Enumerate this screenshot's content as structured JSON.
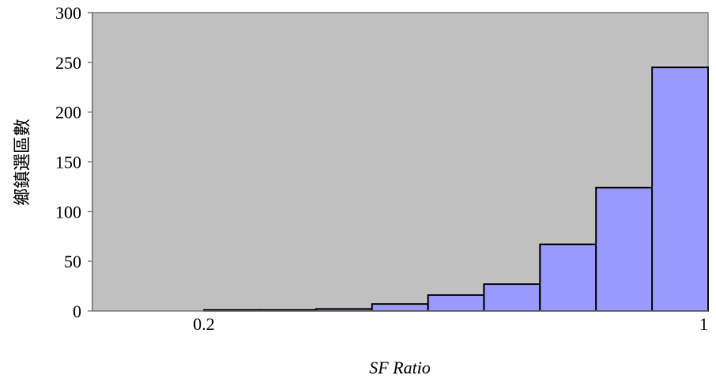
{
  "chart_data": {
    "type": "bar",
    "title": "",
    "xlabel": "SF Ratio",
    "ylabel": "鄉鎮選區數",
    "ylim": [
      0,
      300
    ],
    "yticks": [
      "0",
      "50",
      "100",
      "150",
      "200",
      "250",
      "300"
    ],
    "xlim": [
      0,
      1
    ],
    "xticks": [
      {
        "value": 0.2,
        "label": "0.2"
      },
      {
        "value": 1,
        "label": "1"
      }
    ],
    "bins": [
      {
        "x0": 0.2,
        "x1": 0.3,
        "value": 1
      },
      {
        "x0": 0.3,
        "x1": 0.4,
        "value": 1
      },
      {
        "x0": 0.4,
        "x1": 0.5,
        "value": 2
      },
      {
        "x0": 0.5,
        "x1": 0.6,
        "value": 7
      },
      {
        "x0": 0.6,
        "x1": 0.7,
        "value": 16
      },
      {
        "x0": 0.7,
        "x1": 0.8,
        "value": 27
      },
      {
        "x0": 0.8,
        "x1": 0.9,
        "value": 67
      },
      {
        "x0": 0.9,
        "x1": 1.0,
        "value": 124
      },
      {
        "x0": 1.0,
        "x1": 1.1,
        "value": 245
      }
    ],
    "colors": {
      "plot_background": "#c0c0c0",
      "bar_fill": "#9999ff",
      "bar_stroke": "#000000",
      "axis": "#808080"
    },
    "grid": false,
    "legend": "none"
  }
}
